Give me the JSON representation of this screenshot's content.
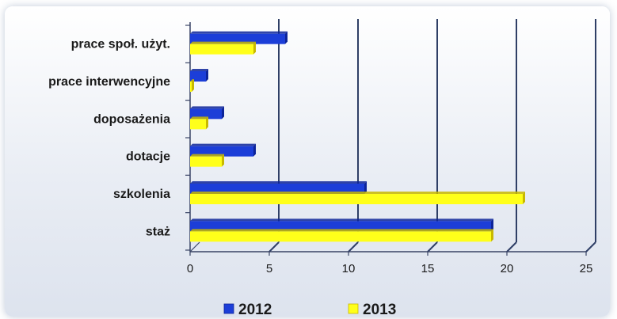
{
  "chart_data": {
    "type": "bar",
    "orientation": "horizontal",
    "categories": [
      "prace społ. użyt.",
      "prace interwencyjne",
      "doposażenia",
      "dotacje",
      "szkolenia",
      "staż"
    ],
    "series": [
      {
        "name": "2012",
        "color": "#1c3ed8",
        "values": [
          6,
          1,
          2,
          4,
          11,
          19
        ]
      },
      {
        "name": "2013",
        "color": "#ffff1a",
        "values": [
          4,
          0,
          1,
          2,
          21,
          19
        ]
      }
    ],
    "xlim": [
      0,
      25
    ],
    "xticks": [
      "0",
      "5",
      "10",
      "15",
      "20",
      "25"
    ],
    "grid": true,
    "legend_position": "bottom",
    "title": "",
    "xlabel": "",
    "ylabel": ""
  }
}
